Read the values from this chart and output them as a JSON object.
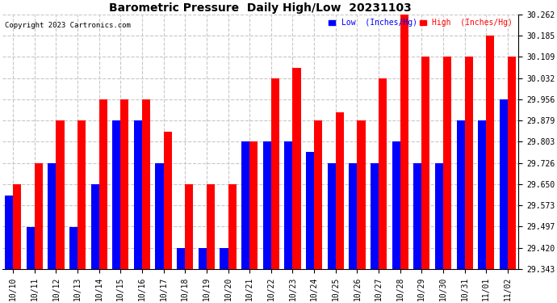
{
  "title": "Barometric Pressure  Daily High/Low  20231103",
  "copyright": "Copyright 2023 Cartronics.com",
  "legend_low": "Low  (Inches/Hg)",
  "legend_high": "High  (Inches/Hg)",
  "dates": [
    "10/10",
    "10/11",
    "10/12",
    "10/13",
    "10/14",
    "10/15",
    "10/16",
    "10/17",
    "10/18",
    "10/19",
    "10/20",
    "10/21",
    "10/22",
    "10/23",
    "10/24",
    "10/25",
    "10/26",
    "10/27",
    "10/28",
    "10/29",
    "10/30",
    "10/31",
    "11/01",
    "11/02"
  ],
  "high_values": [
    29.65,
    29.726,
    29.879,
    29.879,
    29.956,
    29.956,
    29.956,
    29.838,
    29.65,
    29.65,
    29.65,
    29.803,
    30.032,
    30.07,
    29.879,
    29.909,
    29.879,
    30.032,
    30.262,
    30.109,
    30.109,
    30.109,
    30.185,
    30.109
  ],
  "low_values": [
    29.61,
    29.496,
    29.726,
    29.496,
    29.65,
    29.879,
    29.879,
    29.726,
    29.42,
    29.42,
    29.42,
    29.803,
    29.803,
    29.803,
    29.765,
    29.726,
    29.726,
    29.726,
    29.803,
    29.726,
    29.726,
    29.879,
    29.879,
    29.956
  ],
  "ymin": 29.343,
  "ymax": 30.262,
  "yticks": [
    29.343,
    29.42,
    29.497,
    29.573,
    29.65,
    29.726,
    29.803,
    29.879,
    29.956,
    30.032,
    30.109,
    30.185,
    30.262
  ],
  "bar_width": 0.38,
  "high_color": "#ff0000",
  "low_color": "#0000ff",
  "bg_color": "#ffffff",
  "grid_color": "#c8c8c8",
  "title_color": "#000000",
  "title_fontsize": 10,
  "tick_fontsize": 7,
  "copyright_color": "#000000",
  "copyright_fontsize": 6.5
}
